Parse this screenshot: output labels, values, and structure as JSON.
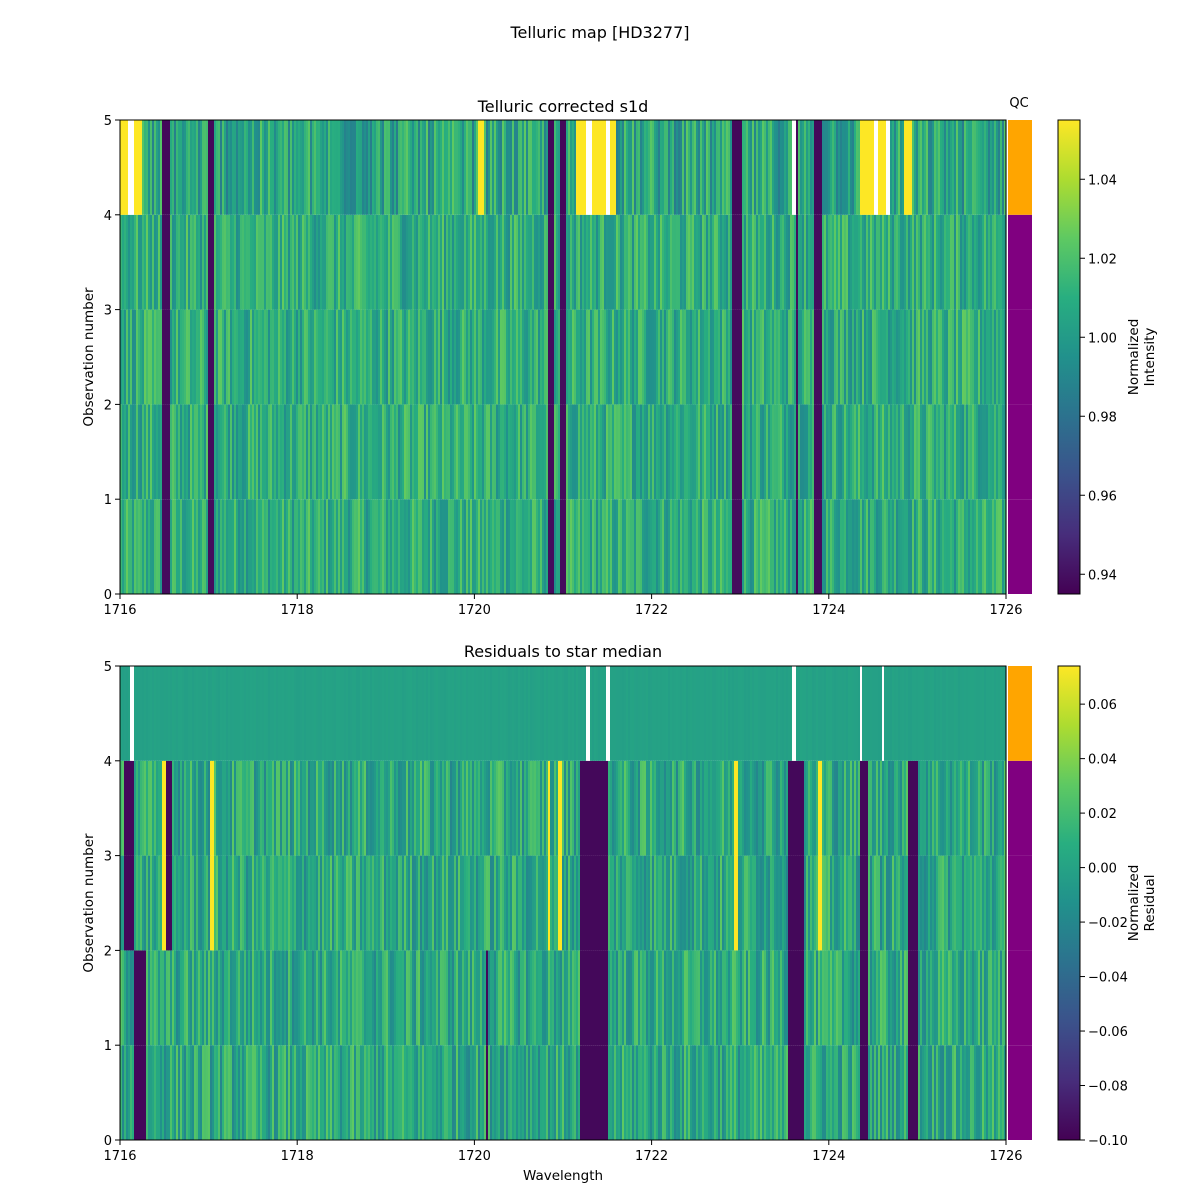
{
  "figure_title": "Telluric map [HD3277]",
  "chart_data": [
    {
      "type": "heatmap",
      "title": "Telluric corrected s1d",
      "xlabel": "",
      "ylabel": "Observation number",
      "xlim": [
        1716,
        1726
      ],
      "ylim": [
        0,
        5
      ],
      "x_ticks": [
        "1716",
        "1718",
        "1720",
        "1722",
        "1724",
        "1726"
      ],
      "y_ticks": [
        "0",
        "1",
        "2",
        "3",
        "4",
        "5"
      ],
      "colormap": "viridis",
      "rows": [
        {
          "observation": 0,
          "qc": "pass"
        },
        {
          "observation": 1,
          "qc": "pass"
        },
        {
          "observation": 2,
          "qc": "pass"
        },
        {
          "observation": 3,
          "qc": "pass"
        },
        {
          "observation": 4,
          "qc": "fail"
        }
      ],
      "qc_label": "QC",
      "colorbar": {
        "label": "Normalized\nIntensity",
        "range": [
          0.935,
          1.055
        ],
        "ticks": [
          "0.94",
          "0.96",
          "0.98",
          "1.00",
          "1.02",
          "1.04"
        ]
      },
      "dark_bands": [
        [
          1716.48,
          1716.56
        ],
        [
          1717.0,
          1717.06
        ],
        [
          1720.82,
          1720.9
        ],
        [
          1720.96,
          1721.04
        ],
        [
          1722.9,
          1723.02
        ],
        [
          1723.62,
          1723.66
        ],
        [
          1723.84,
          1723.92
        ]
      ],
      "saturated_bands_row4": [
        [
          1716.0,
          1716.25
        ],
        [
          1720.05,
          1720.1
        ],
        [
          1721.15,
          1721.6
        ],
        [
          1724.35,
          1724.7
        ],
        [
          1724.85,
          1724.95
        ]
      ],
      "gaps_row4": [
        [
          1716.1,
          1716.16
        ],
        [
          1721.27,
          1721.32
        ],
        [
          1721.49,
          1721.54
        ],
        [
          1723.58,
          1723.64
        ],
        [
          1724.52,
          1724.56
        ],
        [
          1724.64,
          1724.68
        ]
      ]
    },
    {
      "type": "heatmap",
      "title": "Residuals to star median",
      "xlabel": "Wavelength",
      "ylabel": "Observation number",
      "xlim": [
        1716,
        1726
      ],
      "ylim": [
        0,
        5
      ],
      "x_ticks": [
        "1716",
        "1718",
        "1720",
        "1722",
        "1724",
        "1726"
      ],
      "y_ticks": [
        "0",
        "1",
        "2",
        "3",
        "4",
        "5"
      ],
      "colormap": "viridis",
      "rows": [
        {
          "observation": 0,
          "qc": "pass"
        },
        {
          "observation": 1,
          "qc": "pass"
        },
        {
          "observation": 2,
          "qc": "pass"
        },
        {
          "observation": 3,
          "qc": "pass"
        },
        {
          "observation": 4,
          "qc": "fail"
        }
      ],
      "colorbar": {
        "label": "Normalized\nResidual",
        "range": [
          -0.1,
          0.074
        ],
        "ticks": [
          "−0.10",
          "−0.08",
          "−0.06",
          "−0.04",
          "−0.02",
          "0.00",
          "0.02",
          "0.04",
          "0.06"
        ]
      },
      "dark_bands_rows01": [
        [
          1716.15,
          1716.3
        ],
        [
          1720.12,
          1720.16
        ],
        [
          1721.2,
          1721.5
        ],
        [
          1723.55,
          1723.72
        ],
        [
          1724.35,
          1724.45
        ],
        [
          1724.9,
          1725.0
        ]
      ],
      "dark_bands_rows23": [
        [
          1716.05,
          1716.15
        ],
        [
          1716.52,
          1716.58
        ],
        [
          1721.2,
          1721.5
        ],
        [
          1723.55,
          1723.72
        ],
        [
          1724.35,
          1724.45
        ],
        [
          1724.9,
          1725.0
        ]
      ],
      "bright_bands_rows23": [
        [
          1716.48,
          1716.52
        ],
        [
          1717.02,
          1717.06
        ],
        [
          1720.82,
          1720.86
        ],
        [
          1720.94,
          1720.98
        ],
        [
          1722.92,
          1722.98
        ],
        [
          1723.88,
          1723.92
        ]
      ],
      "gaps_row4": [
        [
          1716.12,
          1716.16
        ],
        [
          1721.27,
          1721.31
        ],
        [
          1721.49,
          1721.53
        ],
        [
          1723.58,
          1723.62
        ],
        [
          1724.36,
          1724.38
        ],
        [
          1724.6,
          1724.63
        ]
      ]
    }
  ],
  "colors": {
    "qc_fail": "#FFA500",
    "qc_pass": "#800080",
    "gap": "#ffffff",
    "axis": "#000000"
  }
}
